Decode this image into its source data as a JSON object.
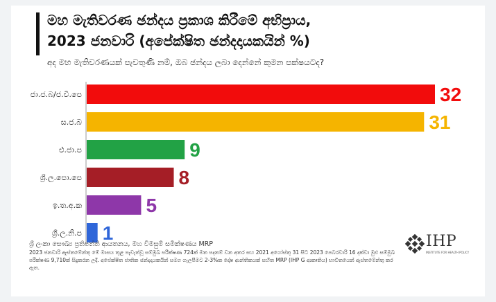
{
  "chart_data": {
    "type": "bar",
    "orientation": "horizontal",
    "title_line1": "මහ මැතිවරණ ඡන්දය ප්‍රකාශ කිරීමේ අභිප්‍රාය,",
    "title_line2": "2023 ජනවාරි (අපේක්ෂිත ඡන්දදායකයින් %)",
    "subtitle": "අද මහ මැතිවරණයක් පැවතුණි නම්, ඔබ ඡන්දය ලබා දෙන්නේ කුමන පක්ෂයටද?",
    "categories": [
      "ජා.ජ.බ/ජ.වි.පෙ",
      "ස.ජ.බ",
      "එ.ජා.ප",
      "ශ්‍රී.ල.පො.පෙ",
      "ඉ.ත.අ.ක",
      "ශ්‍රී.ල.නි.ප"
    ],
    "values": [
      32,
      31,
      9,
      8,
      5,
      1
    ],
    "colors": [
      "#f20c0c",
      "#f5b400",
      "#22a245",
      "#a51e26",
      "#8e37a9",
      "#2f66d9"
    ],
    "xlim": [
      0,
      32
    ],
    "grid": false,
    "legend": "none"
  },
  "footer": {
    "source": "ශ්‍රී ලංකා සෞඛ්‍ය ප්‍රතිපත්ති ආයතනය, මහ විමසුම් සමීක්ෂණය MRP",
    "note_line1": "2023 ජනවාරි ඇස්තමේන්තු මේ මාසය තුළ පැවැත්වූ සම්මුඛ පරීක්ෂණ 724ක් මත පදනම් වන අතර සහ 2021 අගෝස්තු 31 සිට 2023 පෙබරවාරි 16 දක්වා මුළු සම්මුඛ",
    "note_line2": "පරීක්ෂණ 9,710ක් සිදුකරන ලදී. අපේක්ෂිත ජාතික ඡන්දදායකයින් සමග ගැලපීමට 2-3%ක දෝෂ ආන්තිකයක් සහිත MRP (IHP G ආකෘතිය) භාවිතයෙන් ඇස්තමේන්තු කර ඇත."
  },
  "logo": {
    "text": "IHP",
    "sub": "INSTITUTE FOR HEALTH POLICY"
  }
}
